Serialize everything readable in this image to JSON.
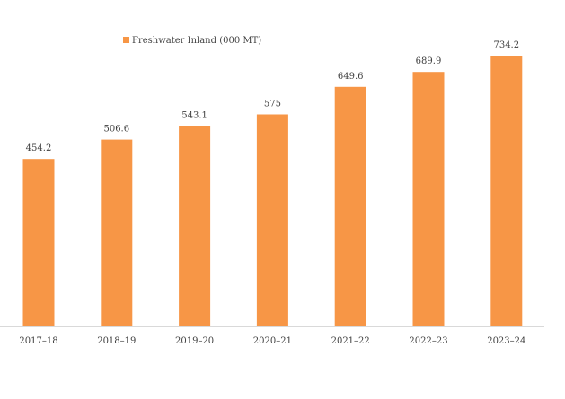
{
  "chart_data": {
    "type": "bar",
    "categories": [
      "2017–18",
      "2018–19",
      "2019–20",
      "2020–21",
      "2021–22",
      "2022–23",
      "2023–24"
    ],
    "series": [
      {
        "name": "Freshwater Inland (000 MT)",
        "values": [
          454.2,
          506.6,
          543.1,
          575,
          649.6,
          689.9,
          734.2
        ]
      }
    ],
    "data_labels": [
      "454.2",
      "506.6",
      "543.1",
      "575",
      "649.6",
      "689.9",
      "734.2"
    ],
    "ylim": [
      0,
      734.2
    ],
    "grid": false,
    "legend_position": "top-left",
    "colors": {
      "bar": "#F79646",
      "axis": "#D9D9D9",
      "text": "#404040"
    }
  }
}
